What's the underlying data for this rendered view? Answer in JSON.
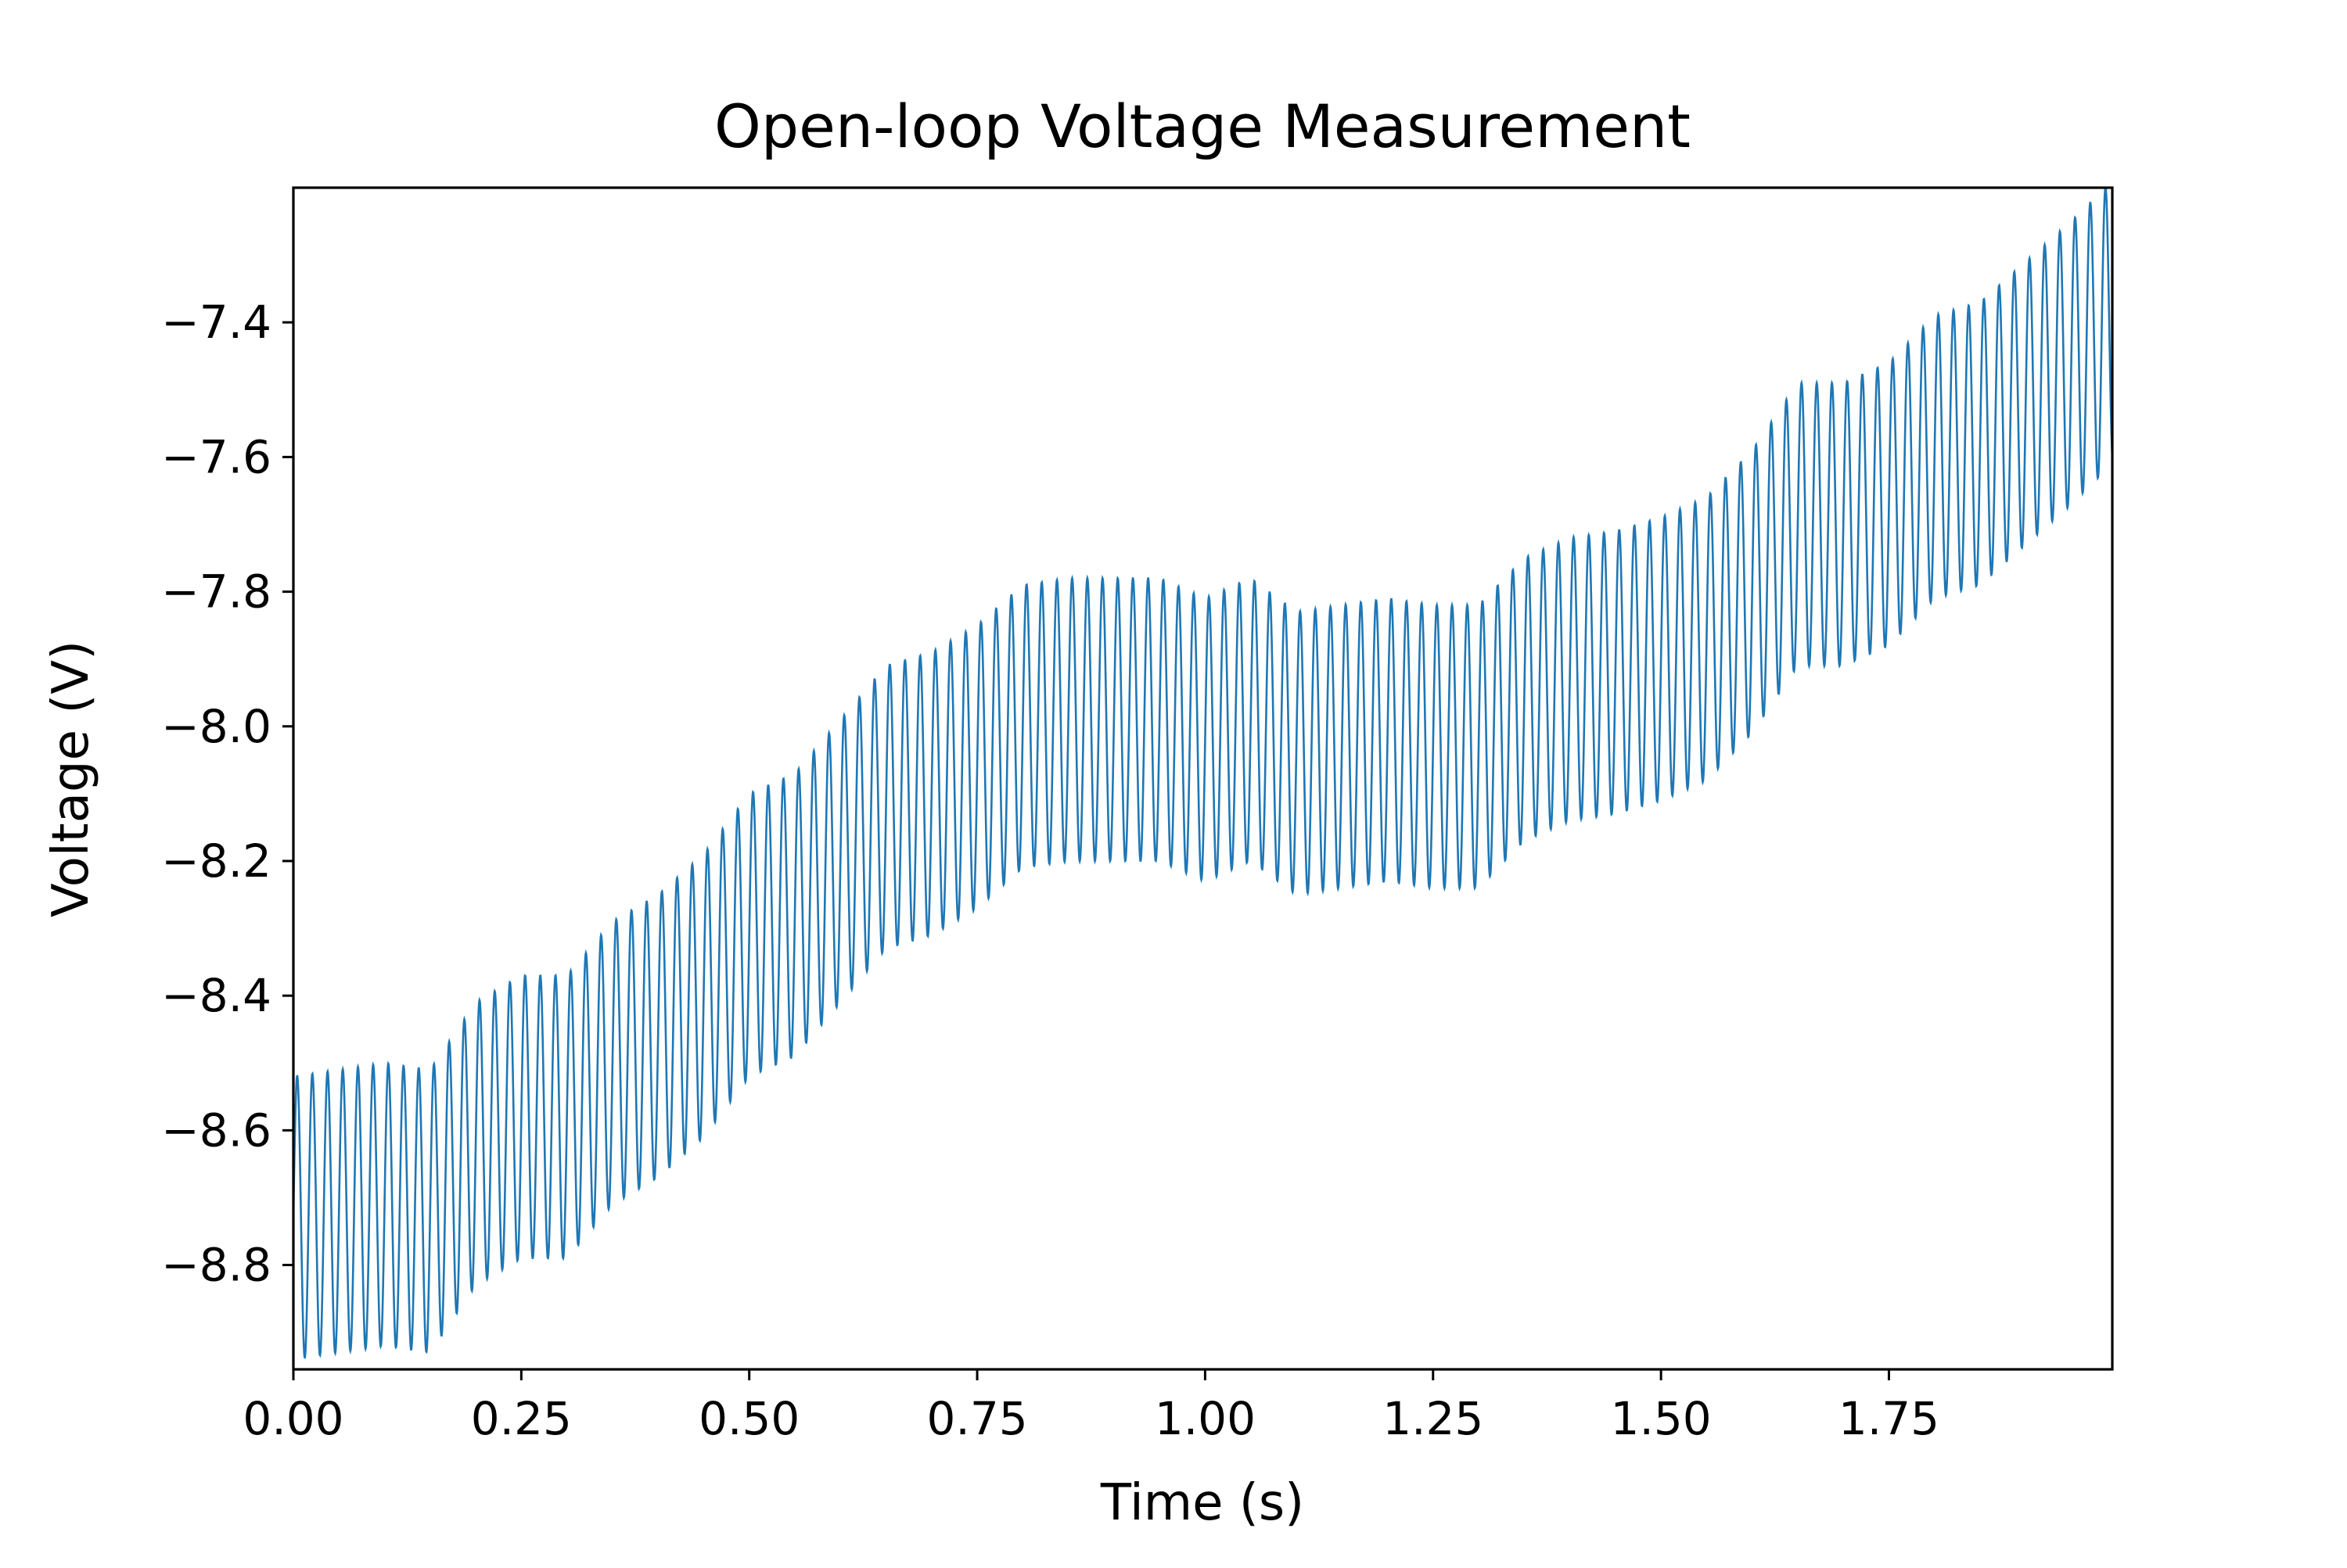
{
  "chart_data": {
    "type": "line",
    "title": "Open-loop Voltage Measurement",
    "xlabel": "Time (s)",
    "ylabel": "Voltage (V)",
    "xlim": [
      0.0,
      1.995
    ],
    "ylim": [
      -8.955,
      -7.2
    ],
    "x_ticks": [
      0.0,
      0.25,
      0.5,
      0.75,
      1.0,
      1.25,
      1.5,
      1.75
    ],
    "x_tick_labels": [
      "0.00",
      "0.25",
      "0.50",
      "0.75",
      "1.00",
      "1.25",
      "1.50",
      "1.75"
    ],
    "y_ticks": [
      -8.8,
      -8.6,
      -8.4,
      -8.2,
      -8.0,
      -7.8,
      -7.6,
      -7.4
    ],
    "y_tick_labels": [
      "−8.8",
      "−8.6",
      "−8.4",
      "−8.2",
      "−8.0",
      "−7.8",
      "−7.6",
      "−7.4"
    ],
    "grid": false,
    "series": [
      {
        "color": "#1f77b4",
        "oscillation_frequency_hz": 60,
        "oscillation_amplitude_v": 0.21,
        "envelope_time_s": [
          0.0,
          0.1,
          0.15,
          0.2,
          0.25,
          0.3,
          0.35,
          0.4,
          0.45,
          0.5,
          0.55,
          0.6,
          0.65,
          0.7,
          0.75,
          0.8,
          0.85,
          0.9,
          0.95,
          1.0,
          1.05,
          1.1,
          1.15,
          1.2,
          1.25,
          1.3,
          1.35,
          1.4,
          1.45,
          1.5,
          1.55,
          1.6,
          1.65,
          1.7,
          1.75,
          1.8,
          1.85,
          1.9,
          1.95,
          1.995
        ],
        "envelope_mean_v": [
          -8.73,
          -8.71,
          -8.72,
          -8.62,
          -8.58,
          -8.58,
          -8.5,
          -8.46,
          -8.4,
          -8.31,
          -8.28,
          -8.2,
          -8.12,
          -8.1,
          -8.06,
          -8.0,
          -7.99,
          -7.99,
          -7.99,
          -8.02,
          -7.99,
          -8.04,
          -8.03,
          -8.02,
          -8.03,
          -8.03,
          -7.96,
          -7.93,
          -7.92,
          -7.9,
          -7.87,
          -7.8,
          -7.7,
          -7.7,
          -7.67,
          -7.6,
          -7.58,
          -7.52,
          -7.46,
          -7.4
        ]
      }
    ]
  }
}
